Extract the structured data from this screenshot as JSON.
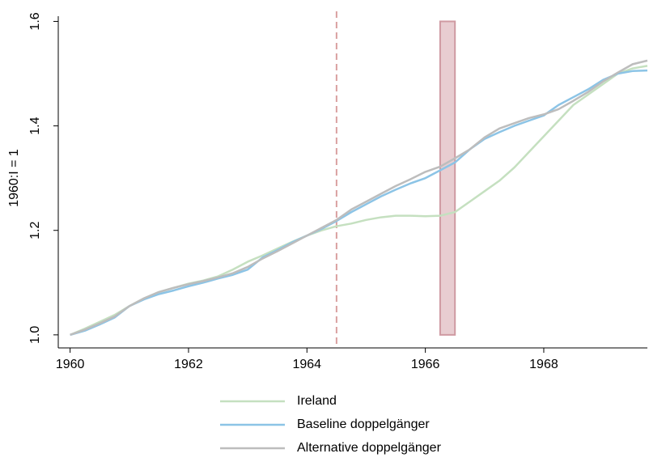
{
  "chart_data": {
    "type": "line",
    "x": [
      1960,
      1960.25,
      1960.5,
      1960.75,
      1961,
      1961.25,
      1961.5,
      1961.75,
      1962,
      1962.25,
      1962.5,
      1962.75,
      1963,
      1963.25,
      1963.5,
      1963.75,
      1964,
      1964.25,
      1964.5,
      1964.75,
      1965,
      1965.25,
      1965.5,
      1965.75,
      1966,
      1966.25,
      1966.5,
      1966.75,
      1967,
      1967.25,
      1967.5,
      1967.75,
      1968,
      1968.25,
      1968.5,
      1968.75,
      1969,
      1969.25,
      1969.5,
      1969.75
    ],
    "series": [
      {
        "name": "Ireland",
        "color": "#c5e0c0",
        "values": [
          1.0,
          1.012,
          1.025,
          1.038,
          1.055,
          1.07,
          1.082,
          1.09,
          1.098,
          1.104,
          1.112,
          1.125,
          1.14,
          1.152,
          1.165,
          1.178,
          1.19,
          1.2,
          1.208,
          1.213,
          1.22,
          1.225,
          1.228,
          1.228,
          1.227,
          1.228,
          1.235,
          1.255,
          1.275,
          1.295,
          1.32,
          1.35,
          1.38,
          1.41,
          1.44,
          1.46,
          1.48,
          1.5,
          1.51,
          1.515
        ]
      },
      {
        "name": "Baseline doppelgänger",
        "color": "#8cc4e6",
        "values": [
          1.0,
          1.008,
          1.02,
          1.033,
          1.055,
          1.068,
          1.078,
          1.085,
          1.093,
          1.1,
          1.108,
          1.115,
          1.125,
          1.148,
          1.162,
          1.177,
          1.19,
          1.203,
          1.218,
          1.235,
          1.25,
          1.265,
          1.278,
          1.29,
          1.3,
          1.315,
          1.33,
          1.355,
          1.375,
          1.388,
          1.4,
          1.41,
          1.42,
          1.44,
          1.455,
          1.47,
          1.488,
          1.5,
          1.505,
          1.506
        ]
      },
      {
        "name": "Alternative doppelgänger",
        "color": "#bdbdbd",
        "values": [
          1.0,
          1.01,
          1.022,
          1.035,
          1.055,
          1.07,
          1.082,
          1.09,
          1.097,
          1.103,
          1.11,
          1.118,
          1.13,
          1.146,
          1.16,
          1.175,
          1.19,
          1.205,
          1.22,
          1.24,
          1.255,
          1.27,
          1.285,
          1.298,
          1.312,
          1.322,
          1.338,
          1.355,
          1.378,
          1.395,
          1.405,
          1.415,
          1.422,
          1.432,
          1.448,
          1.465,
          1.485,
          1.502,
          1.518,
          1.525
        ]
      }
    ],
    "ylabel": "1960:I = 1",
    "xlim": [
      1959.8,
      1969.75
    ],
    "xticks": [
      1960,
      1962,
      1964,
      1966,
      1968
    ],
    "ylim": [
      0.975,
      1.61
    ],
    "yticks": [
      {
        "value": 1.0,
        "label": "1.0"
      },
      1.2,
      1.4,
      1.6
    ],
    "vline": {
      "x": 1964.5,
      "color": "#d9a0a0"
    },
    "shaded": {
      "x": [
        1966.25,
        1966.5
      ],
      "y": [
        1.0,
        1.6
      ],
      "color": "#e8cdd1",
      "edge": "#cf9aa2"
    },
    "legend": "bottom"
  }
}
